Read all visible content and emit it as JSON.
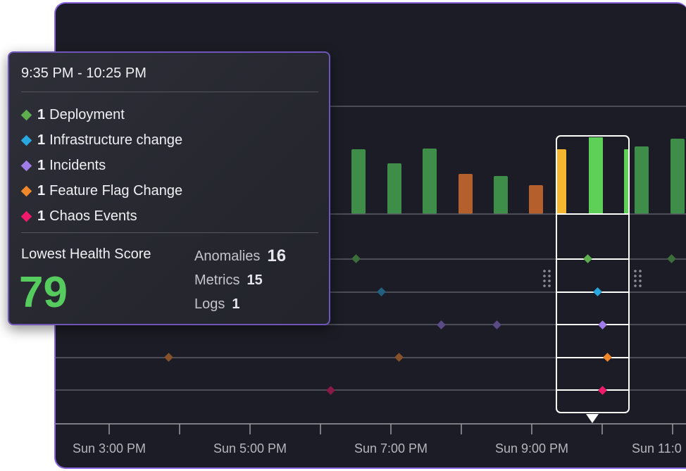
{
  "tooltip": {
    "time_range": "9:35 PM - 10:25 PM",
    "events": [
      {
        "count": "1",
        "label": "Deployment",
        "color": "#5fae4e"
      },
      {
        "count": "1",
        "label": "Infrastructure change",
        "color": "#29a8e0"
      },
      {
        "count": "1",
        "label": "Incidents",
        "color": "#a07ce8"
      },
      {
        "count": "1",
        "label": "Feature Flag Change",
        "color": "#f0872a"
      },
      {
        "count": "1",
        "label": "Chaos Events",
        "color": "#ef1a6b"
      }
    ],
    "health_label": "Lowest Health Score",
    "health_value": "79",
    "health_color": "#56cc5e",
    "stats": [
      {
        "label": "Anomalies",
        "value": "16"
      },
      {
        "label": "Metrics",
        "value": "15"
      },
      {
        "label": "Logs",
        "value": "1"
      }
    ]
  },
  "timeline": {
    "x_labels": [
      "Sun 3:00 PM",
      "Sun 5:00 PM",
      "Sun 7:00 PM",
      "Sun 9:00 PM",
      "Sun 11:0"
    ],
    "bar_colors": {
      "green": "#3e8e4a",
      "orange": "#b5602c",
      "yellow": "#f5b730",
      "bright_green": "#5ed058"
    },
    "selection_color": "#ffffff"
  },
  "icons": {
    "event_marker": "diamond-icon",
    "drag_handle": "grip-dots-icon",
    "selection_pointer": "caret-down-icon"
  }
}
